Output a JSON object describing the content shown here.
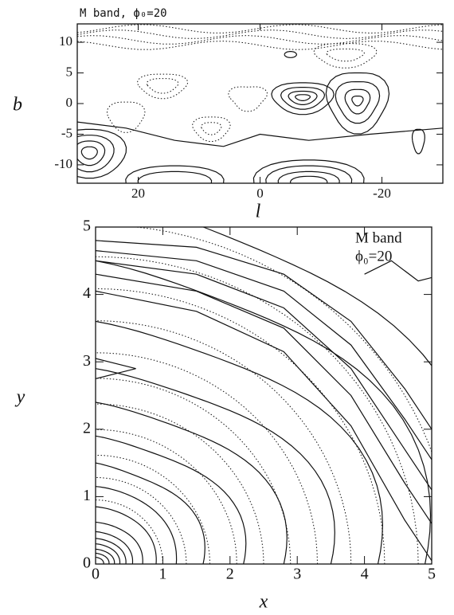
{
  "chart_data": [
    {
      "type": "contour",
      "title": "M band, ϕ₀=20",
      "xlabel": "l",
      "ylabel": "b",
      "xlim": [
        30,
        -30
      ],
      "ylim": [
        -13,
        13
      ],
      "xticks": [
        20,
        0,
        -20
      ],
      "yticks": [
        -10,
        -5,
        0,
        5,
        10
      ]
    },
    {
      "type": "contour",
      "annotations": [
        "M band",
        "ϕ₀=20"
      ],
      "xlabel": "x",
      "ylabel": "y",
      "xlim": [
        0,
        5
      ],
      "ylim": [
        0,
        5
      ],
      "xticks": [
        0,
        1,
        2,
        3,
        4,
        5
      ],
      "yticks": [
        0,
        1,
        2,
        3,
        4,
        5
      ]
    }
  ]
}
